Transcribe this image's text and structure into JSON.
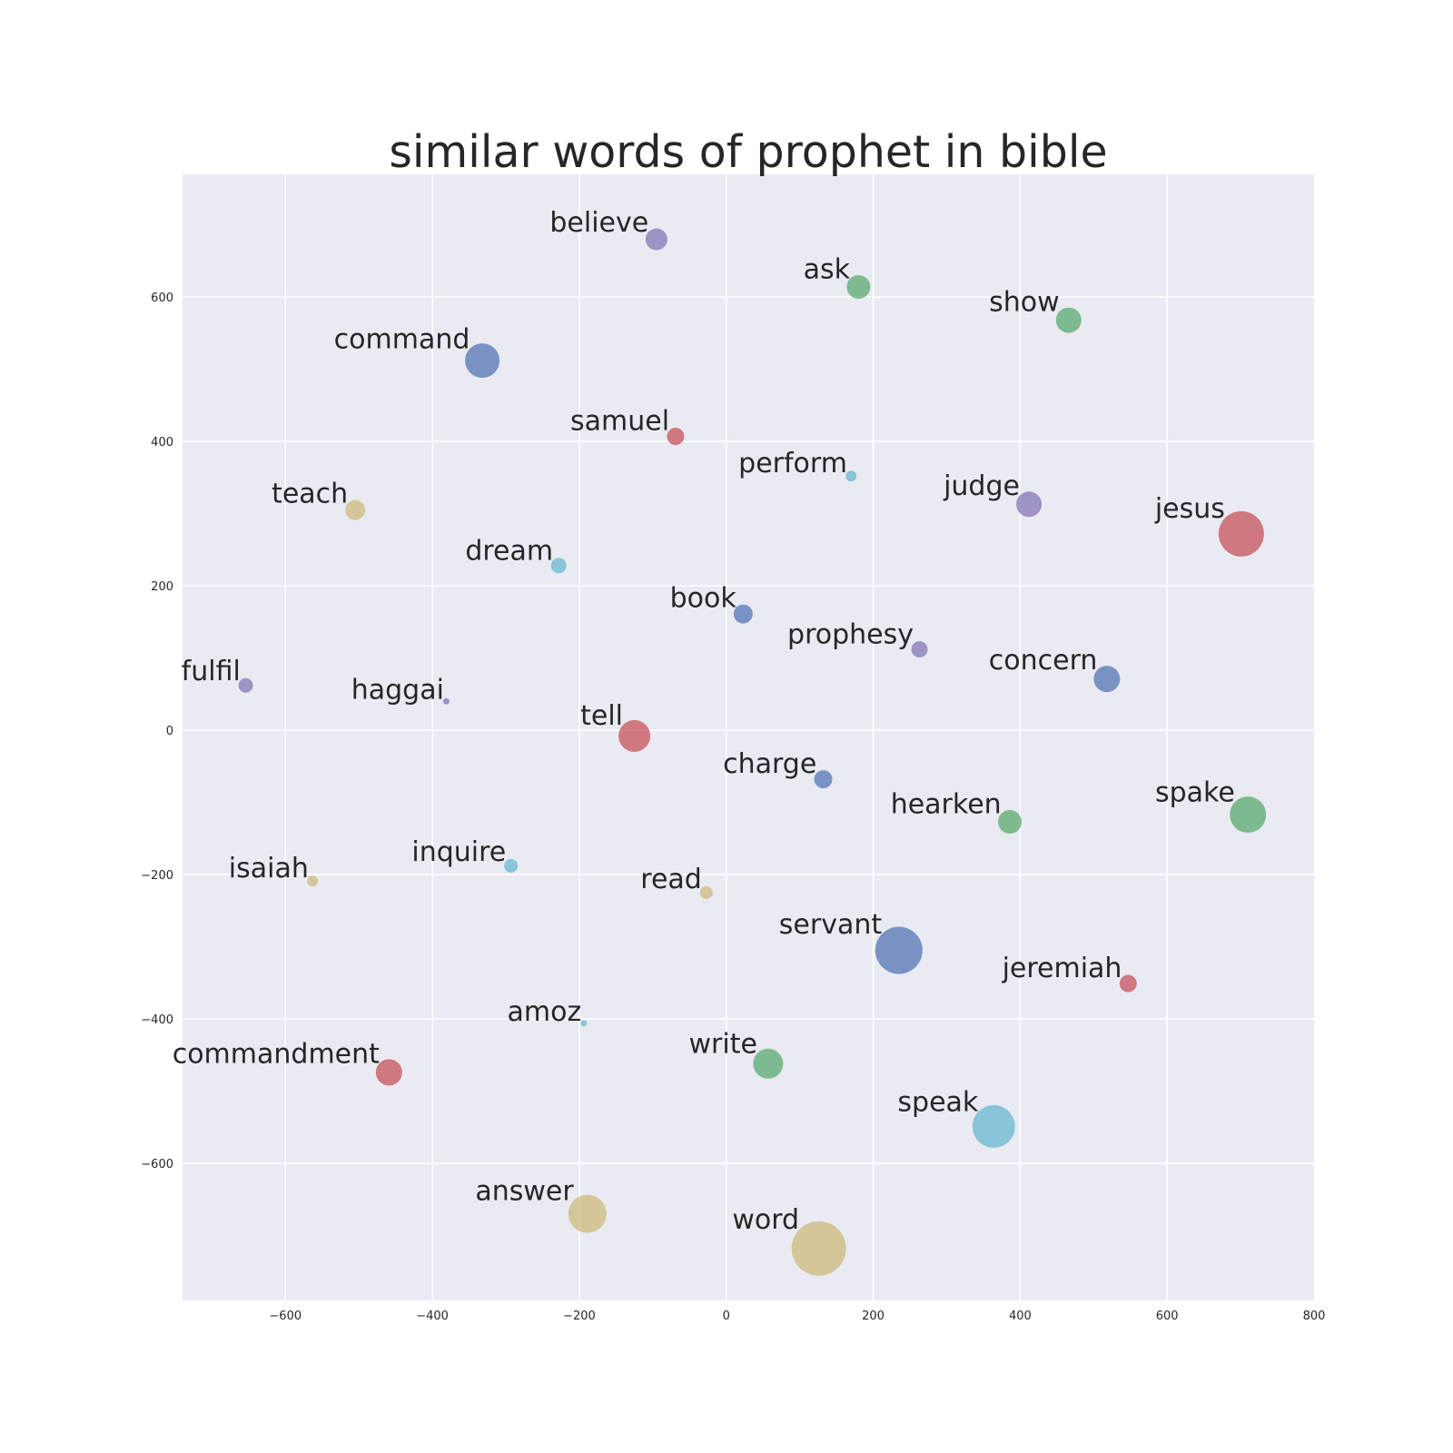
{
  "chart_data": {
    "type": "scatter",
    "title": "similar words of prophet in bible",
    "xlabel": "",
    "ylabel": "",
    "xlim": [
      -740,
      800
    ],
    "ylim": [
      -790,
      770
    ],
    "grid": true,
    "xticks": [
      -600,
      -400,
      -200,
      0,
      200,
      400,
      600,
      800
    ],
    "yticks": [
      600,
      400,
      200,
      0,
      -200,
      -400,
      -600
    ],
    "xtick_labels": [
      "−600",
      "−400",
      "−200",
      "0",
      "200",
      "400",
      "600",
      "800"
    ],
    "ytick_labels": [
      "600",
      "400",
      "200",
      "0",
      "−200",
      "−400",
      "−600"
    ],
    "colors": {
      "blue": "#4c72b0",
      "green": "#55a868",
      "red": "#c44e52",
      "purple": "#8172b2",
      "yellow": "#ccb974",
      "cyan": "#64b5cd",
      "background": "#eaeaf2",
      "grid": "#ffffff",
      "text": "#262626"
    },
    "points": [
      {
        "label": "believe",
        "x": -95,
        "y": 680,
        "size": 24,
        "color": "purple"
      },
      {
        "label": "ask",
        "x": 180,
        "y": 614,
        "size": 26,
        "color": "green"
      },
      {
        "label": "show",
        "x": 466,
        "y": 568,
        "size": 28,
        "color": "green"
      },
      {
        "label": "command",
        "x": -332,
        "y": 512,
        "size": 38,
        "color": "blue"
      },
      {
        "label": "samuel",
        "x": -69,
        "y": 407,
        "size": 19,
        "color": "red"
      },
      {
        "label": "perform",
        "x": 170,
        "y": 352,
        "size": 12,
        "color": "cyan"
      },
      {
        "label": "teach",
        "x": -505,
        "y": 305,
        "size": 22,
        "color": "yellow"
      },
      {
        "label": "judge",
        "x": 412,
        "y": 313,
        "size": 28,
        "color": "purple"
      },
      {
        "label": "jesus",
        "x": 701,
        "y": 272,
        "size": 50,
        "color": "red"
      },
      {
        "label": "dream",
        "x": -228,
        "y": 228,
        "size": 17,
        "color": "cyan"
      },
      {
        "label": "book",
        "x": 23,
        "y": 161,
        "size": 21,
        "color": "blue"
      },
      {
        "label": "prophesy",
        "x": 263,
        "y": 112,
        "size": 18,
        "color": "purple"
      },
      {
        "label": "concern",
        "x": 518,
        "y": 71,
        "size": 29,
        "color": "blue"
      },
      {
        "label": "fulfil",
        "x": -654,
        "y": 62,
        "size": 16,
        "color": "purple"
      },
      {
        "label": "haggai",
        "x": -381,
        "y": 40,
        "size": 7,
        "color": "purple"
      },
      {
        "label": "tell",
        "x": -125,
        "y": -8,
        "size": 35,
        "color": "red"
      },
      {
        "label": "charge",
        "x": 132,
        "y": -68,
        "size": 20,
        "color": "blue"
      },
      {
        "label": "hearken",
        "x": 386,
        "y": -127,
        "size": 26,
        "color": "green"
      },
      {
        "label": "spake",
        "x": 710,
        "y": -117,
        "size": 40,
        "color": "green"
      },
      {
        "label": "isaiah",
        "x": -563,
        "y": -209,
        "size": 12,
        "color": "yellow"
      },
      {
        "label": "inquire",
        "x": -293,
        "y": -188,
        "size": 15,
        "color": "cyan"
      },
      {
        "label": "read",
        "x": -27,
        "y": -225,
        "size": 14,
        "color": "yellow"
      },
      {
        "label": "servant",
        "x": 235,
        "y": -305,
        "size": 52,
        "color": "blue"
      },
      {
        "label": "jeremiah",
        "x": 547,
        "y": -351,
        "size": 19,
        "color": "red"
      },
      {
        "label": "amoz",
        "x": -194,
        "y": -406,
        "size": 7,
        "color": "cyan"
      },
      {
        "label": "commandment",
        "x": -459,
        "y": -474,
        "size": 29,
        "color": "red"
      },
      {
        "label": "write",
        "x": 57,
        "y": -462,
        "size": 33,
        "color": "green"
      },
      {
        "label": "speak",
        "x": 364,
        "y": -549,
        "size": 47,
        "color": "cyan"
      },
      {
        "label": "answer",
        "x": -189,
        "y": -670,
        "size": 42,
        "color": "yellow"
      },
      {
        "label": "word",
        "x": 126,
        "y": -718,
        "size": 60,
        "color": "yellow"
      }
    ]
  }
}
